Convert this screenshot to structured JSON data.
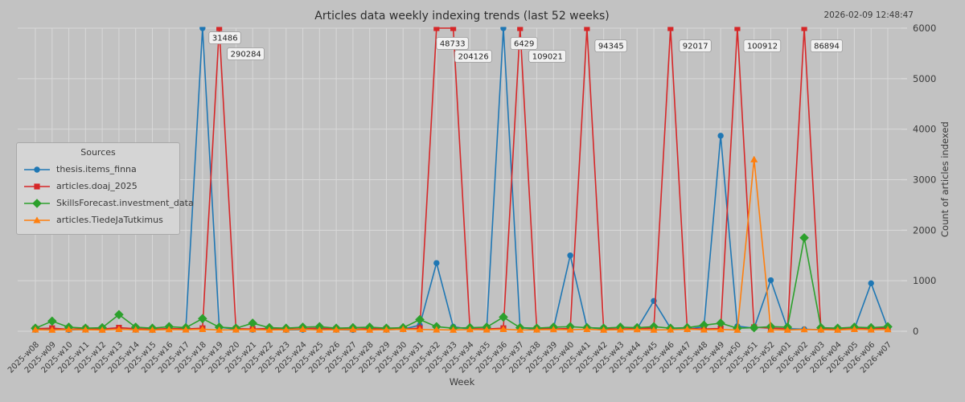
{
  "chart": {
    "title": "Articles data weekly indexing trends (last 52 weeks)",
    "timestamp": "2026-02-09 12:48:47",
    "xlabel": "Week",
    "ylabel": "Count of articles indexed",
    "legend_title": "Sources"
  },
  "colors": {
    "background": "#c2c2c2",
    "grid": "#d8d8d8",
    "text": "#3a3a3a",
    "annotation_bg": "#f1f1f1",
    "annotation_border": "#999999"
  },
  "chart_data": {
    "type": "line",
    "x": [
      "2025-w08",
      "2025-w09",
      "2025-w10",
      "2025-w11",
      "2025-w12",
      "2025-w13",
      "2025-w14",
      "2025-w15",
      "2025-w16",
      "2025-w17",
      "2025-w18",
      "2025-w19",
      "2025-w20",
      "2025-w21",
      "2025-w22",
      "2025-w23",
      "2025-w24",
      "2025-w25",
      "2025-w26",
      "2025-w27",
      "2025-w28",
      "2025-w29",
      "2025-w30",
      "2025-w31",
      "2025-w32",
      "2025-w33",
      "2025-w34",
      "2025-w35",
      "2025-w36",
      "2025-w37",
      "2025-w38",
      "2025-w39",
      "2025-w40",
      "2025-w41",
      "2025-w42",
      "2025-w43",
      "2025-w44",
      "2025-w45",
      "2025-w46",
      "2025-w47",
      "2025-w48",
      "2025-w49",
      "2025-w50",
      "2025-w51",
      "2025-w52",
      "2026-w01",
      "2026-w02",
      "2026-w03",
      "2026-w04",
      "2026-w05",
      "2026-w06",
      "2026-w07"
    ],
    "series": [
      {
        "name": "thesis.items_finna",
        "color": "#1f77b4",
        "marker": "circle",
        "values": [
          30,
          40,
          25,
          35,
          30,
          45,
          30,
          25,
          40,
          60,
          31486,
          80,
          40,
          30,
          35,
          25,
          30,
          40,
          30,
          25,
          35,
          30,
          40,
          120,
          1350,
          90,
          40,
          35,
          6429,
          70,
          40,
          60,
          1500,
          80,
          40,
          35,
          50,
          600,
          60,
          40,
          90,
          3870,
          100,
          60,
          1010,
          50,
          40,
          30,
          35,
          45,
          950,
          60
        ]
      },
      {
        "name": "articles.doaj_2025",
        "color": "#d62728",
        "marker": "square",
        "values": [
          50,
          60,
          40,
          55,
          45,
          70,
          50,
          40,
          55,
          45,
          60,
          290284,
          50,
          45,
          55,
          40,
          50,
          60,
          45,
          40,
          55,
          50,
          45,
          60,
          48733,
          204126,
          50,
          45,
          60,
          109021,
          50,
          45,
          55,
          94345,
          50,
          45,
          55,
          60,
          92017,
          50,
          45,
          55,
          100912,
          80,
          60,
          50,
          86894,
          55,
          45,
          50,
          55,
          60
        ]
      },
      {
        "name": "SkillsForecast.investment_data",
        "color": "#2ca02c",
        "marker": "diamond",
        "values": [
          60,
          200,
          80,
          60,
          70,
          330,
          80,
          60,
          90,
          70,
          250,
          80,
          60,
          160,
          70,
          60,
          80,
          90,
          60,
          70,
          80,
          60,
          70,
          230,
          90,
          60,
          70,
          80,
          280,
          70,
          60,
          80,
          90,
          70,
          60,
          80,
          70,
          90,
          60,
          70,
          120,
          160,
          60,
          70,
          90,
          80,
          1850,
          70,
          60,
          80,
          70,
          90
        ]
      },
      {
        "name": "articles.TiedeJaTutkimus",
        "color": "#ff7f0e",
        "marker": "triangle",
        "values": [
          30,
          25,
          35,
          30,
          25,
          40,
          30,
          25,
          35,
          30,
          40,
          25,
          30,
          35,
          25,
          30,
          40,
          25,
          30,
          35,
          25,
          30,
          40,
          35,
          30,
          25,
          35,
          30,
          40,
          25,
          30,
          35,
          30,
          40,
          25,
          30,
          35,
          25,
          30,
          40,
          30,
          35,
          25,
          3400,
          30,
          25,
          35,
          30,
          25,
          40,
          30,
          35
        ]
      }
    ],
    "ylim": [
      0,
      6000
    ],
    "yticks": [
      0,
      1000,
      2000,
      3000,
      4000,
      5000,
      6000
    ],
    "grid": true,
    "legend_position": "center left",
    "annotations": [
      {
        "week": "2025-w18",
        "label": "31486",
        "dx": 8,
        "y": 47
      },
      {
        "week": "2025-w19",
        "label": "290284",
        "dx": 10,
        "y": 67
      },
      {
        "week": "2025-w32",
        "label": "48733",
        "dx": 0,
        "y": 54
      },
      {
        "week": "2025-w33",
        "label": "204126",
        "dx": 2,
        "y": 70
      },
      {
        "week": "2025-w36",
        "label": "6429",
        "dx": 9,
        "y": 54
      },
      {
        "week": "2025-w37",
        "label": "109021",
        "dx": 11,
        "y": 70
      },
      {
        "week": "2025-w41",
        "label": "94345",
        "dx": 10,
        "y": 57
      },
      {
        "week": "2025-w46",
        "label": "92017",
        "dx": 11,
        "y": 57
      },
      {
        "week": "2025-w50",
        "label": "100912",
        "dx": 8,
        "y": 57
      },
      {
        "week": "2026-w02",
        "label": "86894",
        "dx": 8,
        "y": 57
      }
    ]
  }
}
